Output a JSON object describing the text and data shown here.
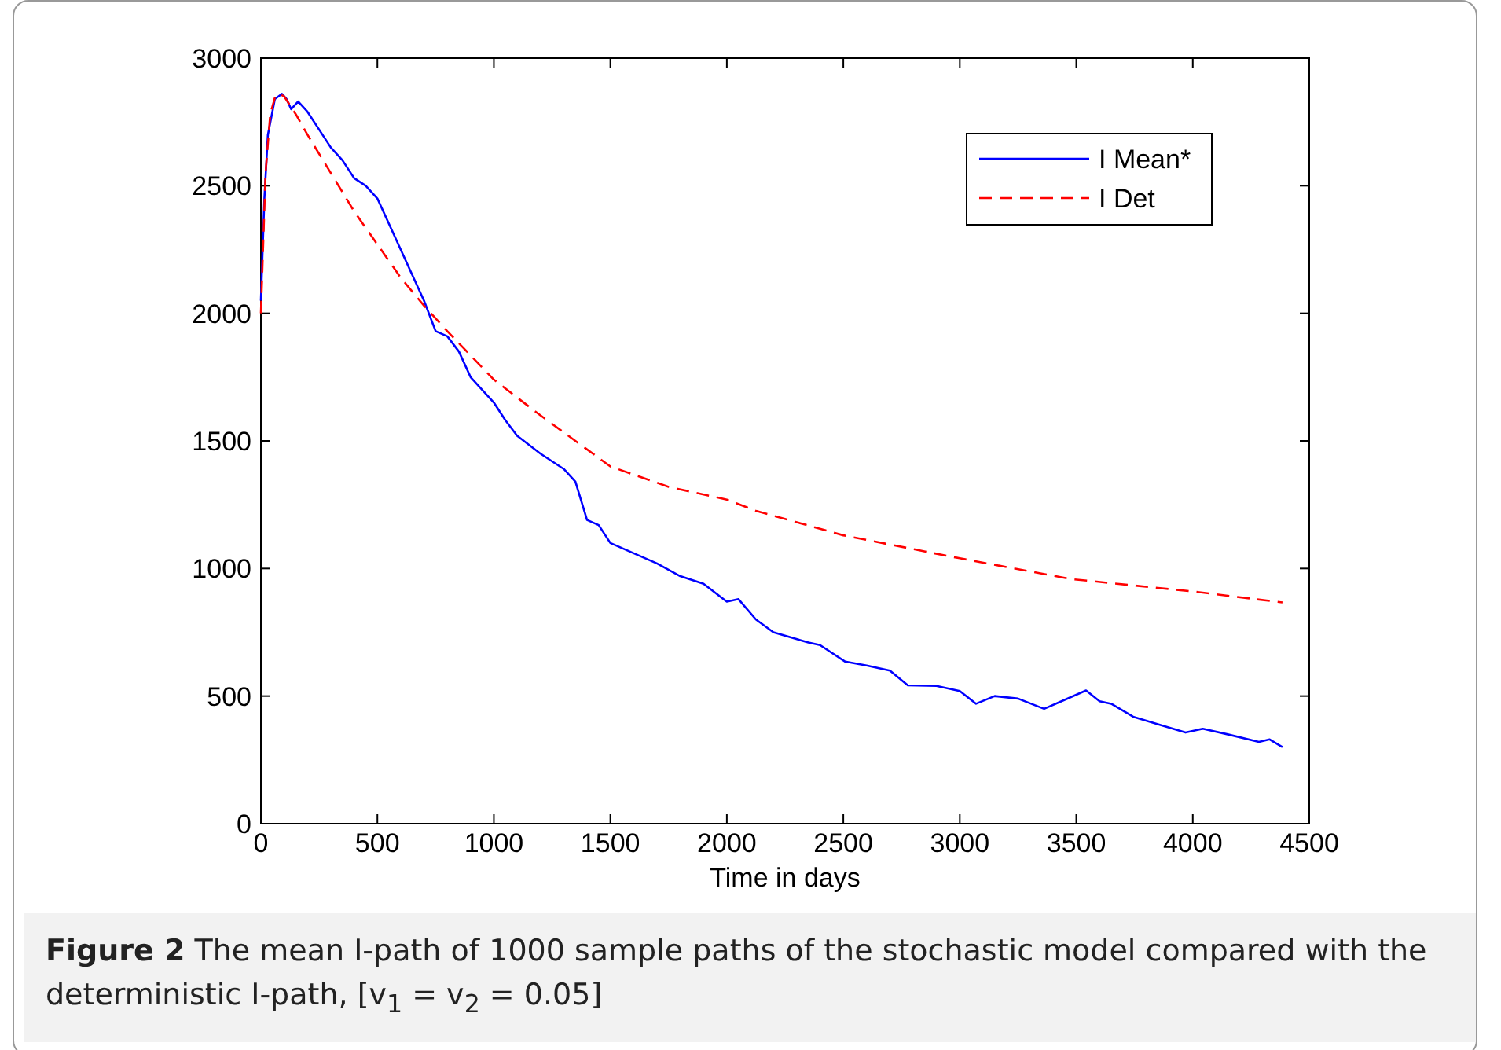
{
  "chart_data": {
    "type": "line",
    "title": "Figure 2",
    "xlabel": "Time in days",
    "annotations": [
      "The mean I-path of 1000 sample paths of the stochastic model compared with the deterministic I-path, [v$_{1}$ = v$_{2}$ = 0.05]"
    ],
    "xlim": [
      0,
      4500
    ],
    "xticks": [
      0,
      500,
      1000,
      1500,
      2000,
      2500,
      3000,
      3500,
      4000,
      4500
    ],
    "ylim": [
      0,
      3000
    ],
    "yticks": [
      0,
      500,
      1000,
      1500,
      2000,
      2500,
      3000
    ],
    "legend": "top right",
    "grid": false,
    "series": [
      {
        "name": "I Mean*",
        "color": "#0000ff",
        "line_style": "solid",
        "x": [
          0,
          15,
          30,
          60,
          90,
          110,
          130,
          160,
          200,
          250,
          300,
          350,
          400,
          450,
          500,
          550,
          600,
          650,
          700,
          750,
          800,
          850,
          900,
          950,
          1000,
          1050,
          1100,
          1200,
          1300,
          1350,
          1400,
          1450,
          1500,
          1600,
          1700,
          1800,
          1900,
          2000,
          2050,
          2125,
          2200,
          2350,
          2400,
          2508,
          2600,
          2700,
          2777,
          2900,
          3000,
          3070,
          3150,
          3250,
          3362,
          3450,
          3542,
          3600,
          3650,
          3744,
          3850,
          3969,
          4043,
          4150,
          4284,
          4330,
          4385
        ],
        "values": [
          2050,
          2450,
          2700,
          2840,
          2860,
          2840,
          2800,
          2830,
          2790,
          2720,
          2650,
          2600,
          2530,
          2500,
          2450,
          2350,
          2250,
          2150,
          2050,
          1930,
          1910,
          1850,
          1750,
          1700,
          1650,
          1580,
          1520,
          1450,
          1390,
          1340,
          1190,
          1170,
          1100,
          1060,
          1020,
          970,
          940,
          870,
          880,
          800,
          750,
          710,
          700,
          635,
          620,
          600,
          542,
          540,
          520,
          470,
          500,
          490,
          450,
          485,
          522,
          480,
          470,
          419,
          390,
          357,
          372,
          350,
          320,
          330,
          300
        ]
      },
      {
        "name": "I Det",
        "color": "#ff0000",
        "line_style": "dashed",
        "x": [
          0,
          20,
          40,
          60,
          80,
          100,
          150,
          200,
          300,
          400,
          500,
          600,
          700,
          800,
          1000,
          1200,
          1500,
          1750,
          2000,
          2125,
          2500,
          3000,
          3475,
          4000,
          4385
        ],
        "values": [
          2000,
          2550,
          2780,
          2845,
          2860,
          2850,
          2780,
          2700,
          2550,
          2400,
          2270,
          2140,
          2030,
          1930,
          1740,
          1600,
          1400,
          1320,
          1270,
          1226,
          1130,
          1040,
          959,
          910,
          867
        ]
      }
    ]
  }
}
